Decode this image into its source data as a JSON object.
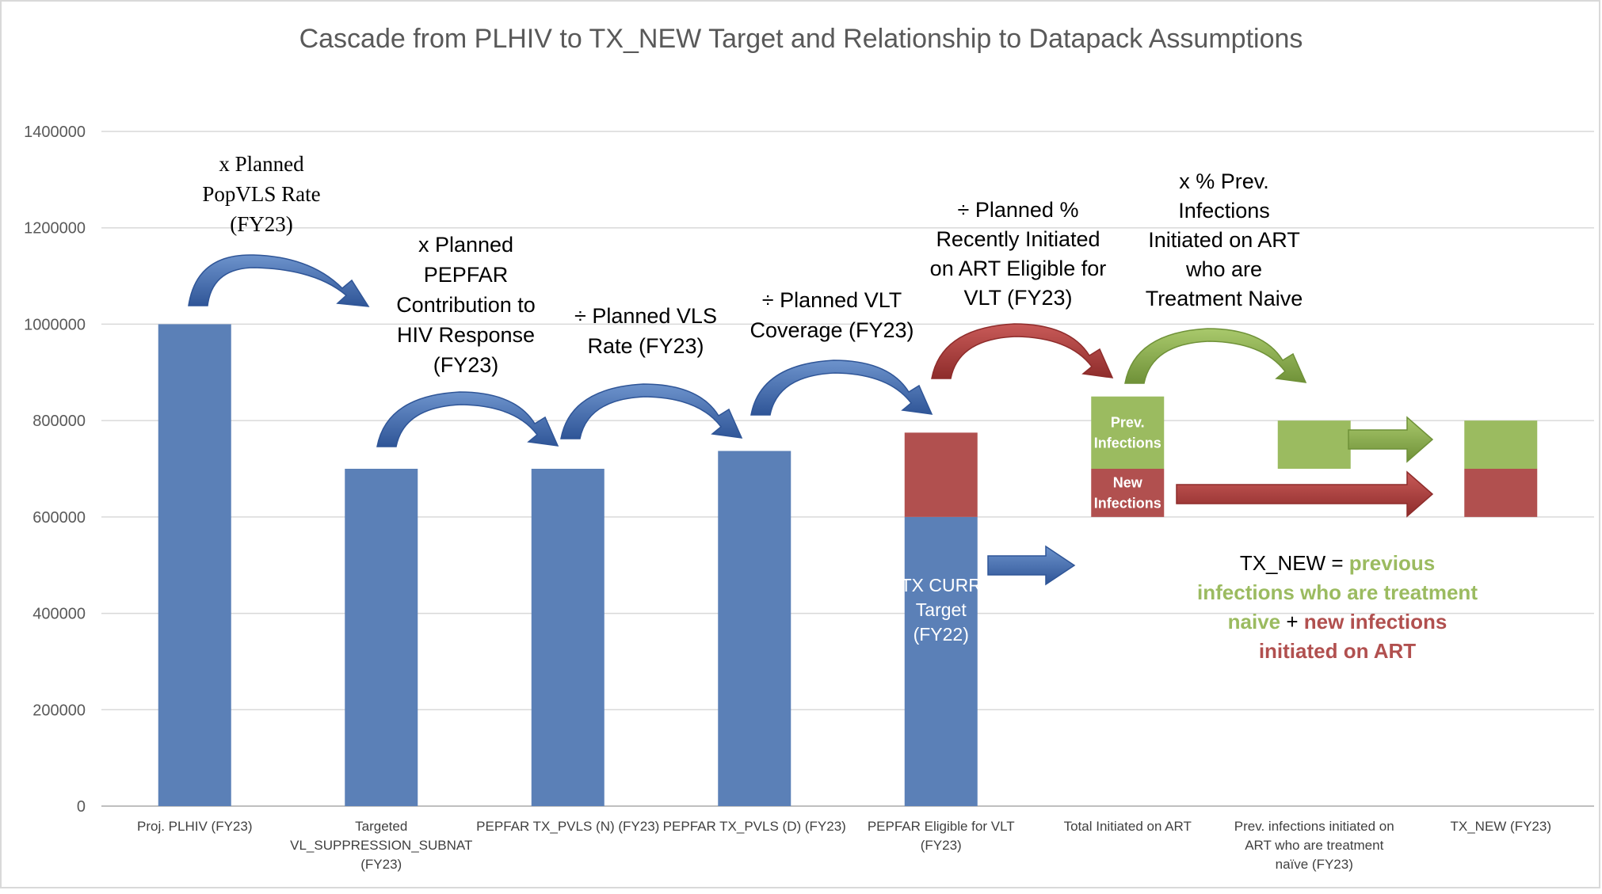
{
  "chart_data": {
    "type": "bar",
    "stacked": true,
    "title": "Cascade from PLHIV to TX_NEW Target and Relationship to Datapack Assumptions",
    "xlabel": "",
    "ylabel": "",
    "ylim": [
      0,
      1400000
    ],
    "y_ticks": [
      "0",
      "200000",
      "400000",
      "600000",
      "800000",
      "1000000",
      "1200000",
      "1400000"
    ],
    "grid": "horizontal",
    "legend": "none",
    "categories": [
      [
        "Proj. PLHIV (FY23)"
      ],
      [
        "Targeted",
        "VL_SUPPRESSION_SUBNAT",
        "(FY23)"
      ],
      [
        "PEPFAR TX_PVLS (N) (FY23)"
      ],
      [
        "PEPFAR TX_PVLS  (D) (FY23)"
      ],
      [
        "PEPFAR Eligible for VLT",
        "(FY23)"
      ],
      [
        "Total Initiated on ART"
      ],
      [
        "Prev. infections initiated on",
        "ART who are treatment",
        "naïve (FY23)"
      ],
      [
        "TX_NEW (FY23)"
      ]
    ],
    "series": [
      {
        "key": "blue",
        "color": "#5b80b7",
        "values": [
          1000000,
          700000,
          700000,
          737000,
          600000,
          0,
          0,
          0
        ]
      },
      {
        "key": "red",
        "color": "#b1504f",
        "values": [
          0,
          0,
          0,
          0,
          175000,
          100000,
          0,
          100000
        ]
      },
      {
        "key": "green",
        "color": "#9bbb60",
        "values": [
          0,
          0,
          0,
          0,
          0,
          150000,
          100000,
          100000
        ]
      }
    ],
    "bases": [
      0,
      0,
      0,
      0,
      0,
      600000,
      700000,
      600000
    ],
    "segment_labels": [
      {
        "bar": 4,
        "series": "blue",
        "lines": [
          "TX CURR",
          "Target",
          "(FY22)"
        ]
      },
      {
        "bar": 5,
        "series": "green",
        "lines": [
          "Prev.",
          "Infections"
        ]
      },
      {
        "bar": 5,
        "series": "red",
        "lines": [
          "New",
          "Infections"
        ]
      }
    ],
    "annotations": [
      {
        "lines": [
          "x Planned",
          "PopVLS Rate",
          "(FY23)"
        ]
      },
      {
        "lines": [
          "x Planned",
          "PEPFAR",
          "Contribution to",
          "HIV Response",
          "(FY23)"
        ]
      },
      {
        "lines": [
          "÷ Planned VLS",
          "Rate (FY23)"
        ]
      },
      {
        "lines": [
          "÷ Planned VLT",
          "Coverage (FY23)"
        ]
      },
      {
        "lines": [
          "÷ Planned %",
          "Recently Initiated",
          "on ART Eligible for",
          "VLT (FY23)"
        ]
      },
      {
        "lines": [
          "x % Prev.",
          "Infections",
          "Initiated on ART",
          "who are",
          "Treatment Naive"
        ]
      }
    ],
    "equation": [
      [
        {
          "text": "TX_NEW = ",
          "color": "#000000",
          "bold": false
        },
        {
          "text": "previous",
          "color": "#9bbb60",
          "bold": true
        }
      ],
      [
        {
          "text": "infections who are treatment",
          "color": "#9bbb60",
          "bold": true
        }
      ],
      [
        {
          "text": "naive",
          "color": "#9bbb60",
          "bold": true
        },
        {
          "text": " + ",
          "color": "#000000",
          "bold": false
        },
        {
          "text": "new infections",
          "color": "#b1504f",
          "bold": true
        }
      ],
      [
        {
          "text": "initiated on ART",
          "color": "#b1504f",
          "bold": true
        }
      ]
    ],
    "colors": {
      "blue": "#5b80b7",
      "red": "#b1504f",
      "green": "#9bbb60",
      "arrow_blue": "#4a74b1",
      "arrow_red": "#ad4342",
      "arrow_green": "#8fb052"
    }
  }
}
